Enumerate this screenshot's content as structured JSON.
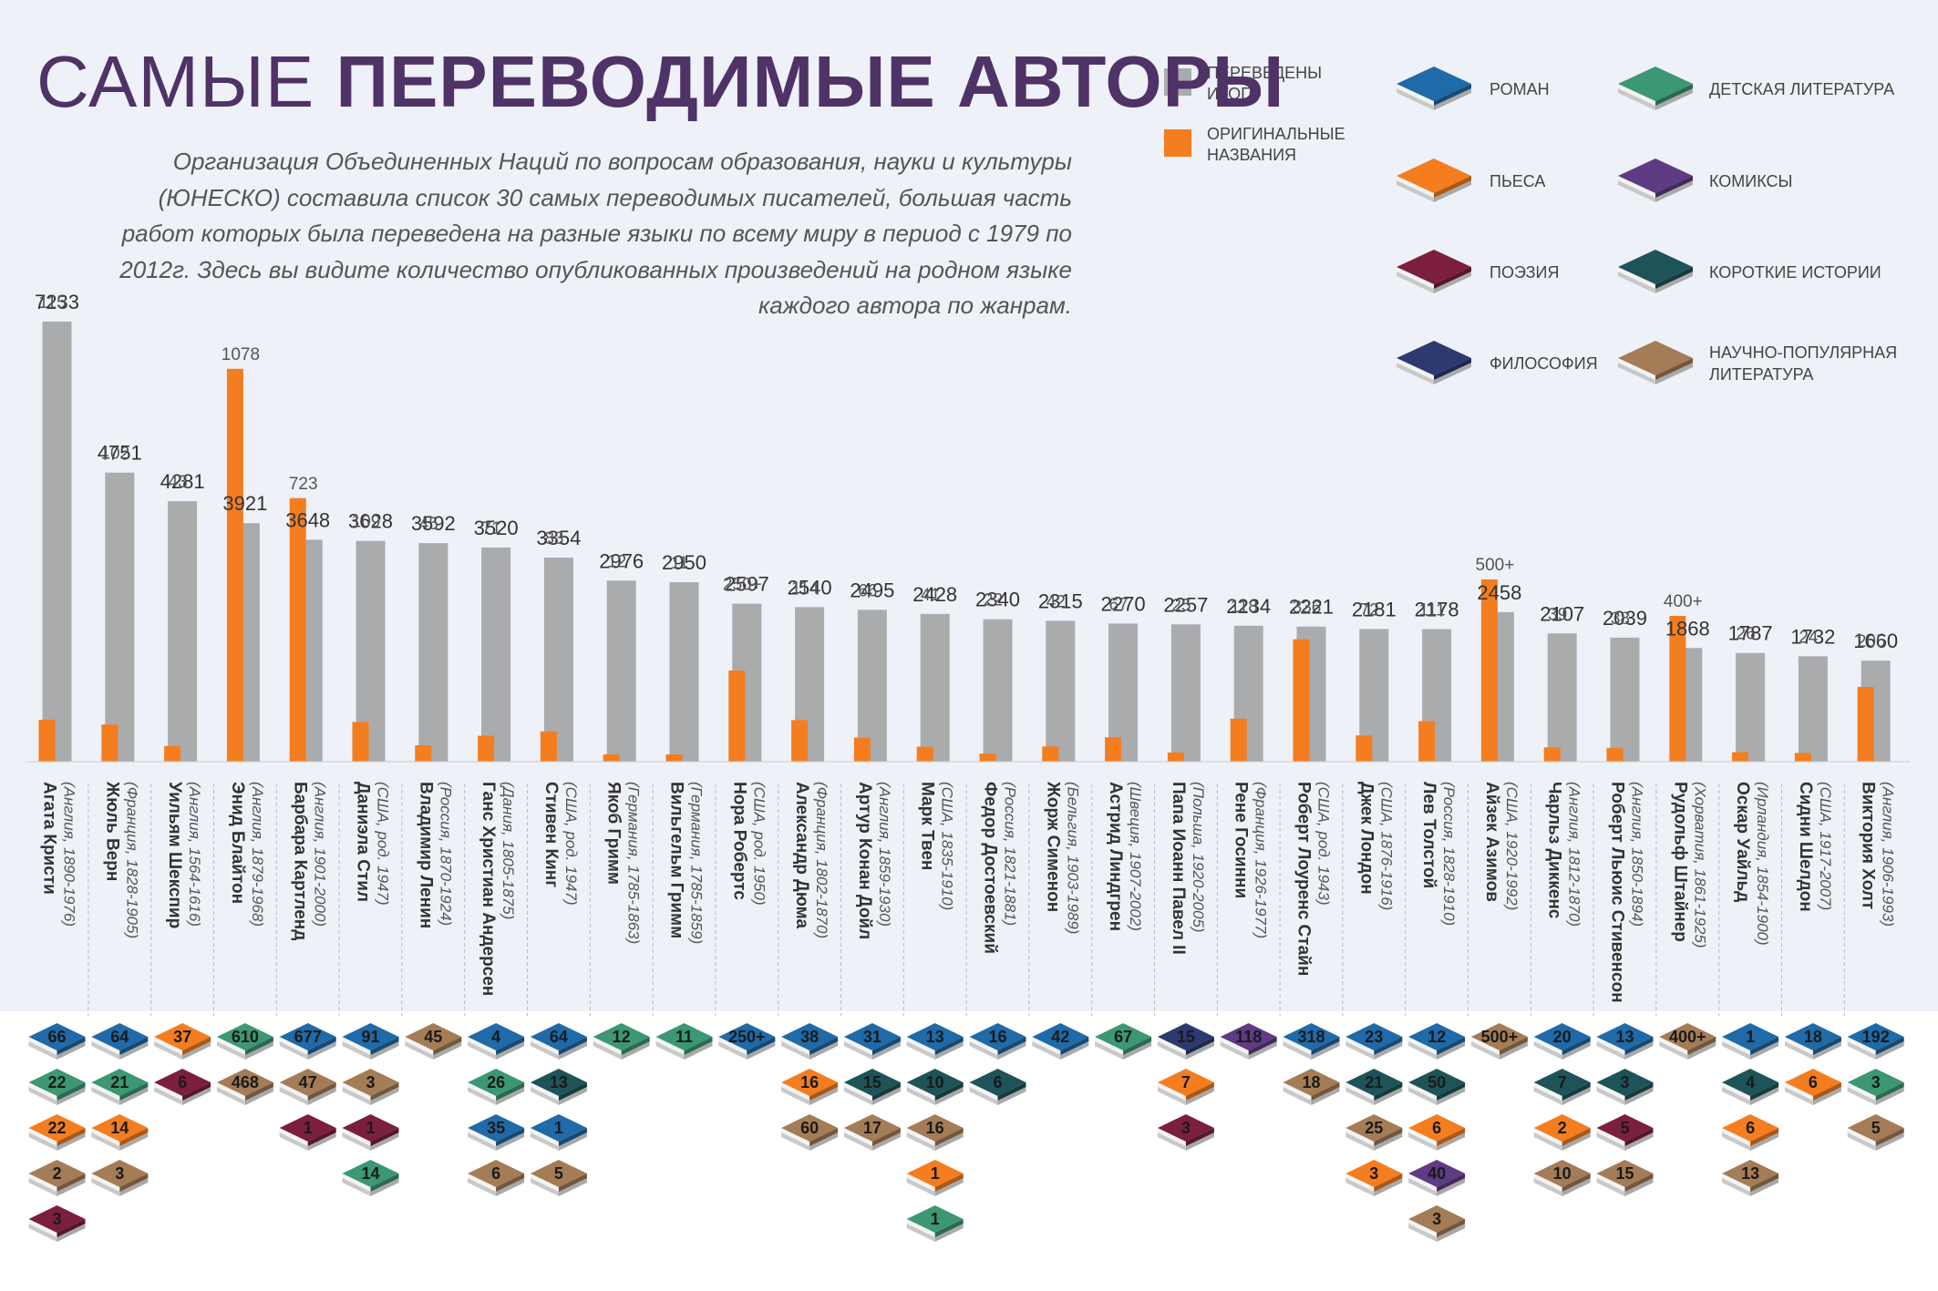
{
  "header": {
    "title_light": "САМЫЕ",
    "title_bold": "ПЕРЕВОДИМЫЕ АВТОРЫ",
    "description": "Организация Объединенных Наций по вопросам образования, науки и культуры (ЮНЕСКО) составила список 30 самых переводимых писателей, большая часть работ которых была переведена на разные языки по всему миру в период с 1979 по 2012г. Здесь вы видите количество опубликованных произведений на родном языке каждого автора по жанрам."
  },
  "colors": {
    "background_top": "#eef1f7",
    "background_bottom": "#ffffff",
    "total_bar": "#aaabad",
    "original_bar": "#f47d20",
    "title": "#4f3267",
    "label": "#333333"
  },
  "legend": {
    "bars": [
      {
        "key": "translated",
        "label_lines": [
          "ПЕРЕВЕДЕНЫ",
          "ИТОГО"
        ],
        "color": "#aaabad"
      },
      {
        "key": "original",
        "label_lines": [
          "ОРИГИНАЛЬНЫЕ",
          "НАЗВАНИЯ"
        ],
        "color": "#f47d20"
      }
    ],
    "genres": [
      {
        "key": "roman",
        "label_lines": [
          "РОМАН"
        ],
        "color": "#1f6aa8"
      },
      {
        "key": "children",
        "label_lines": [
          "ДЕТСКАЯ ЛИТЕРАТУРА"
        ],
        "color": "#3b9872"
      },
      {
        "key": "play",
        "label_lines": [
          "ПЬЕСА"
        ],
        "color": "#f47d20"
      },
      {
        "key": "comics",
        "label_lines": [
          "КОМИКСЫ"
        ],
        "color": "#5e3b82"
      },
      {
        "key": "poetry",
        "label_lines": [
          "ПОЭЗИЯ"
        ],
        "color": "#7b1f3d"
      },
      {
        "key": "short",
        "label_lines": [
          "КОРОТКИЕ ИСТОРИИ"
        ],
        "color": "#1e5458"
      },
      {
        "key": "philosophy",
        "label_lines": [
          "ФИЛОСОФИЯ"
        ],
        "color": "#2d3a72"
      },
      {
        "key": "nonfiction",
        "label_lines": [
          "НАУЧНО-ПОПУЛЯРНАЯ",
          "ЛИТЕРАТУРА"
        ],
        "color": "#a47c56"
      }
    ]
  },
  "chart_data": {
    "type": "bar",
    "ylim": [
      0,
      7233
    ],
    "series": [
      {
        "name": "ПЕРЕВЕДЕНЫ ИТОГО",
        "key": "total"
      },
      {
        "name": "ОРИГИНАЛЬНЫЕ НАЗВАНИЯ",
        "key": "original"
      }
    ],
    "authors": [
      {
        "name": "Агата Кристи",
        "info": "(Англия, 1890-1976)",
        "total": 7233,
        "total_label": "7233",
        "original": 115,
        "original_label": "115",
        "genres": [
          {
            "genre": "roman",
            "value": "66"
          },
          {
            "genre": "children",
            "value": "22"
          },
          {
            "genre": "play",
            "value": "22"
          },
          {
            "genre": "nonfiction",
            "value": "2"
          },
          {
            "genre": "poetry",
            "value": "3"
          }
        ]
      },
      {
        "name": "Жюль Верн",
        "info": "(Франция, 1828-1905)",
        "total": 4751,
        "total_label": "4751",
        "original": 102,
        "original_label": "102",
        "genres": [
          {
            "genre": "roman",
            "value": "64"
          },
          {
            "genre": "children",
            "value": "21"
          },
          {
            "genre": "play",
            "value": "14"
          },
          {
            "genre": "nonfiction",
            "value": "3"
          }
        ]
      },
      {
        "name": "Уильям Шекспир",
        "info": "(Англия, 1564-1616)",
        "total": 4281,
        "total_label": "4281",
        "original": 43,
        "original_label": "43",
        "genres": [
          {
            "genre": "play",
            "value": "37"
          },
          {
            "genre": "poetry",
            "value": "6"
          }
        ]
      },
      {
        "name": "Энид Блайтон",
        "info": "(Англия, 1879-1968)",
        "total": 3921,
        "total_label": "3921",
        "original": 1078,
        "original_label": "1078",
        "genres": [
          {
            "genre": "children",
            "value": "610"
          },
          {
            "genre": "nonfiction",
            "value": "468"
          }
        ]
      },
      {
        "name": "Барбара Картленд",
        "info": "(Англия, 1901-2000)",
        "total": 3648,
        "total_label": "3648",
        "original": 723,
        "original_label": "723",
        "genres": [
          {
            "genre": "roman",
            "value": "677"
          },
          {
            "genre": "nonfiction",
            "value": "47"
          },
          {
            "genre": "poetry",
            "value": "1"
          }
        ]
      },
      {
        "name": "Даниэла Стил",
        "info": "(США, род. 1947)",
        "total": 3628,
        "total_label": "3628",
        "original": 109,
        "original_label": "109",
        "genres": [
          {
            "genre": "roman",
            "value": "91"
          },
          {
            "genre": "nonfiction",
            "value": "3"
          },
          {
            "genre": "poetry",
            "value": "1"
          },
          {
            "genre": "children",
            "value": "14"
          }
        ]
      },
      {
        "name": "Владимир Ленин",
        "info": "(Россия, 1870-1924)",
        "total": 3592,
        "total_label": "3592",
        "original": 45,
        "original_label": "45",
        "genres": [
          {
            "genre": "nonfiction",
            "value": "45"
          }
        ]
      },
      {
        "name": "Ганс Христиан Андерсен",
        "info": "(Дания, 1805-1875)",
        "total": 3520,
        "total_label": "3520",
        "original": 71,
        "original_label": "71",
        "genres": [
          {
            "genre": "roman",
            "value": "4"
          },
          {
            "genre": "children",
            "value": "26"
          },
          {
            "genre": "roman",
            "value": "35"
          },
          {
            "genre": "nonfiction",
            "value": "6"
          }
        ]
      },
      {
        "name": "Стивен Кинг",
        "info": "(США, род. 1947)",
        "total": 3354,
        "total_label": "3354",
        "original": 83,
        "original_label": "83",
        "genres": [
          {
            "genre": "roman",
            "value": "64"
          },
          {
            "genre": "short",
            "value": "13"
          },
          {
            "genre": "roman",
            "value": "1"
          },
          {
            "genre": "nonfiction",
            "value": "5"
          }
        ]
      },
      {
        "name": "Якоб Гримм",
        "info": "(Германия, 1785-1863)",
        "total": 2976,
        "total_label": "2976",
        "original": 12,
        "original_label": "12",
        "genres": [
          {
            "genre": "children",
            "value": "12"
          }
        ]
      },
      {
        "name": "Вильгельм Гримм",
        "info": "(Германия, 1785-1859)",
        "total": 2950,
        "total_label": "2950",
        "original": 11,
        "original_label": "11",
        "genres": [
          {
            "genre": "children",
            "value": "11"
          }
        ]
      },
      {
        "name": "Нора Робертс",
        "info": "(США, род. 1950)",
        "total": 2597,
        "total_label": "2597",
        "original": 250,
        "original_label": "250+",
        "genres": [
          {
            "genre": "roman",
            "value": "250+"
          }
        ]
      },
      {
        "name": "Александр Дюма",
        "info": "(Франция, 1802-1870)",
        "total": 2540,
        "total_label": "2540",
        "original": 114,
        "original_label": "114",
        "genres": [
          {
            "genre": "roman",
            "value": "38"
          },
          {
            "genre": "play",
            "value": "16"
          },
          {
            "genre": "nonfiction",
            "value": "60"
          }
        ]
      },
      {
        "name": "Артур Конан Дойл",
        "info": "(Англия, 1859-1930)",
        "total": 2495,
        "total_label": "2495",
        "original": 66,
        "original_label": "66",
        "genres": [
          {
            "genre": "roman",
            "value": "31"
          },
          {
            "genre": "short",
            "value": "15"
          },
          {
            "genre": "nonfiction",
            "value": "17"
          }
        ]
      },
      {
        "name": "Марк Твен",
        "info": "(США, 1835-1910)",
        "total": 2428,
        "total_label": "2428",
        "original": 41,
        "original_label": "41",
        "genres": [
          {
            "genre": "roman",
            "value": "13"
          },
          {
            "genre": "short",
            "value": "10"
          },
          {
            "genre": "nonfiction",
            "value": "16"
          },
          {
            "genre": "play",
            "value": "1"
          },
          {
            "genre": "children",
            "value": "1"
          }
        ]
      },
      {
        "name": "Федор Достоевский",
        "info": "(Россия, 1821-1881)",
        "total": 2340,
        "total_label": "2340",
        "original": 22,
        "original_label": "22",
        "genres": [
          {
            "genre": "roman",
            "value": "16"
          },
          {
            "genre": "short",
            "value": "6"
          }
        ]
      },
      {
        "name": "Жорж Сименон",
        "info": "(Бельгия, 1903-1989)",
        "total": 2315,
        "total_label": "2315",
        "original": 42,
        "original_label": "42",
        "genres": [
          {
            "genre": "roman",
            "value": "42"
          }
        ]
      },
      {
        "name": "Астрид Линдгрен",
        "info": "(Швеция, 1907-2002)",
        "total": 2270,
        "total_label": "2270",
        "original": 67,
        "original_label": "67",
        "genres": [
          {
            "genre": "children",
            "value": "67"
          }
        ]
      },
      {
        "name": "Папа Иоанн Павел II",
        "info": "(Польша, 1920-2005)",
        "total": 2257,
        "total_label": "2257",
        "original": 25,
        "original_label": "25",
        "genres": [
          {
            "genre": "philosophy",
            "value": "15"
          },
          {
            "genre": "play",
            "value": "7"
          },
          {
            "genre": "poetry",
            "value": "3"
          }
        ]
      },
      {
        "name": "Рене Госинни",
        "info": "(Франция, 1926-1977)",
        "total": 2234,
        "total_label": "2234",
        "original": 118,
        "original_label": "118",
        "genres": [
          {
            "genre": "comics",
            "value": "118"
          }
        ]
      },
      {
        "name": "Роберт Лоуренс Стайн",
        "info": "(США, род. 1943)",
        "total": 2221,
        "total_label": "2221",
        "original": 336,
        "original_label": "336",
        "genres": [
          {
            "genre": "roman",
            "value": "318"
          },
          {
            "genre": "nonfiction",
            "value": "18"
          }
        ]
      },
      {
        "name": "Джек Лондон",
        "info": "(США, 1876-1916)",
        "total": 2181,
        "total_label": "2181",
        "original": 72,
        "original_label": "72",
        "genres": [
          {
            "genre": "roman",
            "value": "23"
          },
          {
            "genre": "short",
            "value": "21"
          },
          {
            "genre": "nonfiction",
            "value": "25"
          },
          {
            "genre": "play",
            "value": "3"
          }
        ]
      },
      {
        "name": "Лев Толстой",
        "info": "(Россия, 1828-1910)",
        "total": 2178,
        "total_label": "2178",
        "original": 111,
        "original_label": "111",
        "genres": [
          {
            "genre": "roman",
            "value": "12"
          },
          {
            "genre": "short",
            "value": "50"
          },
          {
            "genre": "play",
            "value": "6"
          },
          {
            "genre": "comics",
            "value": "40"
          },
          {
            "genre": "nonfiction",
            "value": "3"
          }
        ]
      },
      {
        "name": "Айзек Азимов",
        "info": "(США, 1920-1992)",
        "total": 2458,
        "total_label": "2458",
        "original": 500,
        "original_label": "500+",
        "genres": [
          {
            "genre": "nonfiction",
            "value": "500+"
          }
        ]
      },
      {
        "name": "Чарльз Диккенс",
        "info": "(Англия, 1812-1870)",
        "total": 2107,
        "total_label": "2107",
        "original": 39,
        "original_label": "39",
        "genres": [
          {
            "genre": "roman",
            "value": "20"
          },
          {
            "genre": "short",
            "value": "7"
          },
          {
            "genre": "play",
            "value": "2"
          },
          {
            "genre": "nonfiction",
            "value": "10"
          }
        ]
      },
      {
        "name": "Роберт Льюис Стивенсон",
        "info": "(Англия, 1850-1894)",
        "total": 2039,
        "total_label": "2039",
        "original": 38,
        "original_label": "38",
        "genres": [
          {
            "genre": "roman",
            "value": "13"
          },
          {
            "genre": "short",
            "value": "3"
          },
          {
            "genre": "poetry",
            "value": "5"
          },
          {
            "genre": "nonfiction",
            "value": "15"
          }
        ]
      },
      {
        "name": "Рудольф Штайнер",
        "info": "(Хорватия, 1861-1925)",
        "total": 1868,
        "total_label": "1868",
        "original": 400,
        "original_label": "400+",
        "genres": [
          {
            "genre": "nonfiction",
            "value": "400+"
          }
        ]
      },
      {
        "name": "Оскар Уайльд",
        "info": "(Ирландия, 1854-1900)",
        "total": 1787,
        "total_label": "1787",
        "original": 26,
        "original_label": "26",
        "genres": [
          {
            "genre": "roman",
            "value": "1"
          },
          {
            "genre": "short",
            "value": "4"
          },
          {
            "genre": "play",
            "value": "6"
          },
          {
            "genre": "nonfiction",
            "value": "13"
          }
        ]
      },
      {
        "name": "Сидни Шелдон",
        "info": "(США, 1917-2007)",
        "total": 1732,
        "total_label": "1732",
        "original": 24,
        "original_label": "24",
        "genres": [
          {
            "genre": "roman",
            "value": "18"
          },
          {
            "genre": "play",
            "value": "6"
          }
        ]
      },
      {
        "name": "Виктория Холт",
        "info": "(Англия, 1906-1993)",
        "total": 1660,
        "total_label": "1660",
        "original": 205,
        "original_label": "205",
        "genres": [
          {
            "genre": "roman",
            "value": "192"
          },
          {
            "genre": "children",
            "value": "3"
          },
          {
            "genre": "nonfiction",
            "value": "5"
          }
        ]
      }
    ]
  }
}
